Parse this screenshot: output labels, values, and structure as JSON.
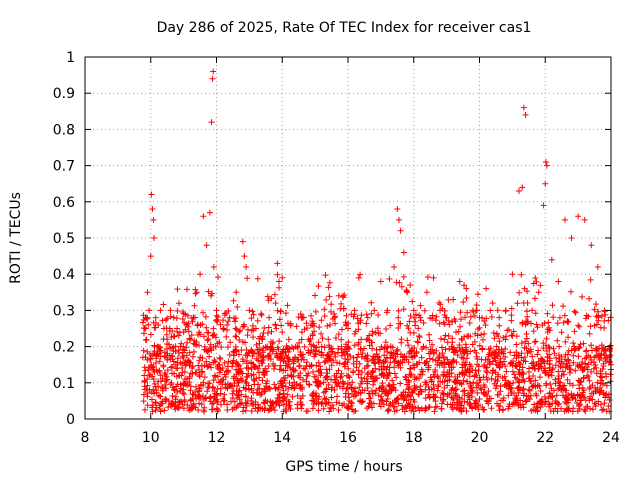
{
  "chart_data": {
    "type": "scatter",
    "title": "Day 286 of 2025, Rate Of TEC Index for receiver cas1",
    "xlabel": "GPS time / hours",
    "ylabel": "ROTI / TECUs",
    "xlim": [
      8,
      24
    ],
    "ylim": [
      0,
      1
    ],
    "xticks": [
      8,
      10,
      12,
      14,
      16,
      18,
      20,
      22,
      24
    ],
    "yticks": [
      0,
      0.1,
      0.2,
      0.3,
      0.4,
      0.5,
      0.6,
      0.7,
      0.8,
      0.9,
      1
    ],
    "xtick_labels": [
      "8",
      "10",
      "12",
      "14",
      "16",
      "18",
      "20",
      "22",
      "24"
    ],
    "ytick_labels": [
      "0",
      "0.1",
      "0.2",
      "0.3",
      "0.4",
      "0.5",
      "0.6",
      "0.7",
      "0.8",
      "0.9",
      "1"
    ],
    "grid": true,
    "marker": "+",
    "color": "#ff0000",
    "series": [
      {
        "name": "cas1",
        "x": [
          9.8,
          9.85,
          9.9,
          9.95,
          10.0,
          10.02,
          10.05,
          10.08,
          10.1,
          10.15,
          10.2,
          10.3,
          10.4,
          10.5,
          10.6,
          10.7,
          10.8,
          10.9,
          11.0,
          11.1,
          11.2,
          11.3,
          11.4,
          11.5,
          11.6,
          11.7,
          11.8,
          11.85,
          11.88,
          11.9,
          11.92,
          12.0,
          12.2,
          12.4,
          12.6,
          12.8,
          12.85,
          12.9,
          13.0,
          13.2,
          13.4,
          13.6,
          13.8,
          13.85,
          13.9,
          14.0,
          14.2,
          14.4,
          14.6,
          14.8,
          15.0,
          15.2,
          15.4,
          15.6,
          15.8,
          16.0,
          16.2,
          16.4,
          16.6,
          16.8,
          17.0,
          17.2,
          17.4,
          17.5,
          17.55,
          17.6,
          17.7,
          17.8,
          18.0,
          18.2,
          18.4,
          18.6,
          18.8,
          19.0,
          19.2,
          19.4,
          19.6,
          19.8,
          20.0,
          20.2,
          20.4,
          20.6,
          20.8,
          21.0,
          21.2,
          21.3,
          21.35,
          21.4,
          21.6,
          21.8,
          21.95,
          22.0,
          22.02,
          22.05,
          22.2,
          22.4,
          22.6,
          22.8,
          23.0,
          23.2,
          23.4,
          23.6,
          23.8,
          24.0
        ],
        "y": [
          0.12,
          0.25,
          0.35,
          0.3,
          0.45,
          0.62,
          0.58,
          0.55,
          0.5,
          0.28,
          0.2,
          0.3,
          0.25,
          0.22,
          0.3,
          0.28,
          0.25,
          0.2,
          0.24,
          0.26,
          0.22,
          0.28,
          0.35,
          0.4,
          0.56,
          0.48,
          0.57,
          0.82,
          0.94,
          0.96,
          0.42,
          0.3,
          0.25,
          0.28,
          0.35,
          0.49,
          0.45,
          0.42,
          0.3,
          0.25,
          0.22,
          0.28,
          0.32,
          0.43,
          0.38,
          0.24,
          0.22,
          0.2,
          0.24,
          0.22,
          0.18,
          0.2,
          0.22,
          0.18,
          0.2,
          0.25,
          0.3,
          0.22,
          0.28,
          0.3,
          0.38,
          0.3,
          0.42,
          0.58,
          0.55,
          0.52,
          0.46,
          0.35,
          0.3,
          0.28,
          0.35,
          0.39,
          0.3,
          0.28,
          0.33,
          0.38,
          0.36,
          0.3,
          0.28,
          0.36,
          0.32,
          0.28,
          0.3,
          0.4,
          0.63,
          0.64,
          0.86,
          0.84,
          0.3,
          0.35,
          0.59,
          0.65,
          0.71,
          0.7,
          0.44,
          0.38,
          0.55,
          0.5,
          0.56,
          0.55,
          0.48,
          0.42,
          0.3,
          0.15
        ]
      }
    ],
    "dense_band": {
      "x_start": 9.75,
      "x_end": 24,
      "y_low": 0.02,
      "y_high": 0.2,
      "y_upper_excursion": 0.4
    }
  }
}
